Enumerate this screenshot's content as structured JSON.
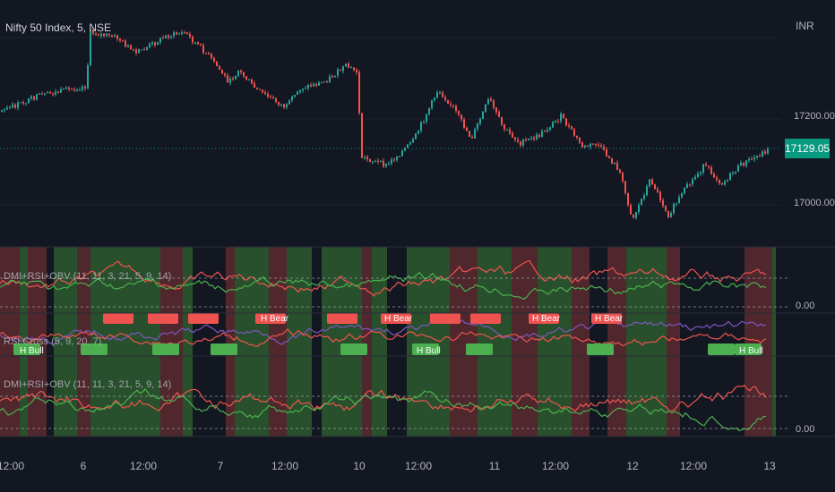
{
  "chart_title": "Nifty 50 Index, 5, NSE",
  "currency": "INR",
  "current_price": "17129.05",
  "price_axis_labels": [
    "17200.00",
    "17000.00"
  ],
  "indicator_panes": [
    {
      "title": "DMI+RSI+OBV (11, 11, 3, 21, 5, 9, 14)",
      "zero_label": "0.00"
    },
    {
      "title": "RSI Cross (5, 9, 20, 7)",
      "zero_label": ""
    },
    {
      "title": "DMI+RSI+OBV (11, 11, 3, 21, 5, 9, 14)",
      "zero_label": "0.00"
    }
  ],
  "signal_labels": {
    "bull": "H Bull",
    "bear": "H Bear"
  },
  "x_axis_labels": [
    "12:00",
    "6",
    "12:00",
    "7",
    "12:00",
    "10",
    "12:00",
    "11",
    "12:00",
    "12",
    "12:00",
    "13"
  ],
  "colors": {
    "background": "#131722",
    "up": "#26a69a",
    "down": "#ef5350",
    "bull_zone": "#2e5a2e",
    "bear_zone": "#5a2a2e",
    "last_price": "#089981",
    "line_green": "#4caf50",
    "line_red": "#ef5350",
    "line_purple": "#7e57c2"
  }
}
